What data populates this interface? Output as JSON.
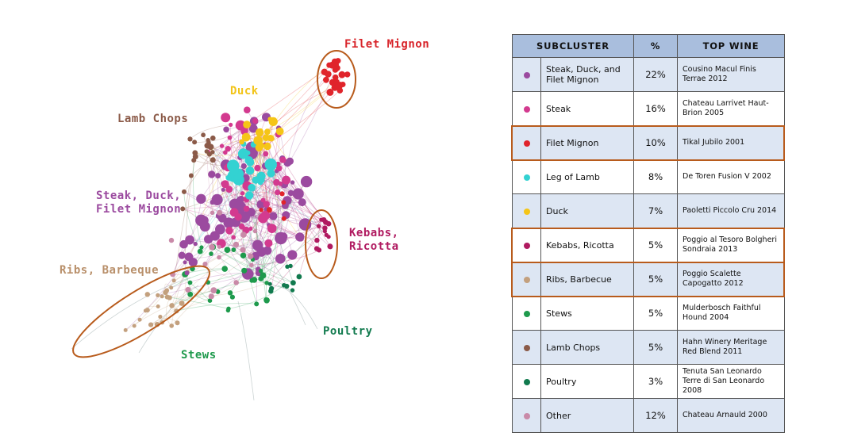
{
  "network": {
    "cluster_labels": [
      {
        "key": "filet",
        "text": "Filet Mignon",
        "color": "#d8242a"
      },
      {
        "key": "duck",
        "text": "Duck",
        "color": "#f2c418"
      },
      {
        "key": "lamb",
        "text": "Lamb Chops",
        "color": "#8b5a48"
      },
      {
        "key": "sdf",
        "text": "Steak, Duck,\nFilet Mignon",
        "color": "#9b4a9f"
      },
      {
        "key": "kebabs",
        "text": "Kebabs,\nRicotta",
        "color": "#b01a60"
      },
      {
        "key": "ribs",
        "text": "Ribs, Barbeque",
        "color": "#b9906b"
      },
      {
        "key": "stews",
        "text": "Stews",
        "color": "#1e9a4c"
      },
      {
        "key": "poultry",
        "text": "Poultry",
        "color": "#117a4e"
      }
    ],
    "node_colors": {
      "sdf": "#9b4a9f",
      "steak": "#d33a8f",
      "filet": "#e0242b",
      "lamb_leg": "#33d2d2",
      "duck": "#f5c517",
      "kebabs": "#b01a60",
      "ribs": "#c3a07e",
      "stews": "#1e9a4c",
      "lamb_chops": "#8b5a48",
      "poultry": "#117a4e",
      "other": "#c98aa8"
    },
    "highlight_color": "#b85b1c"
  },
  "table": {
    "headers": [
      "SUBCLUSTER",
      "%",
      "TOP WINE"
    ],
    "rows": [
      {
        "color": "#9b4a9f",
        "name": "Steak, Duck, and Filet Mignon",
        "pct": "22%",
        "wine": "Cousino Macul Finis Terrae 2012"
      },
      {
        "color": "#d33a8f",
        "name": "Steak",
        "pct": "16%",
        "wine": "Chateau Larrivet Haut-Brion 2005"
      },
      {
        "color": "#e0242b",
        "name": "Filet Mignon",
        "pct": "10%",
        "wine": "Tikal Jubilo 2001"
      },
      {
        "color": "#33d2d2",
        "name": "Leg of Lamb",
        "pct": "8%",
        "wine": "De Toren Fusion V 2002"
      },
      {
        "color": "#f5c517",
        "name": "Duck",
        "pct": "7%",
        "wine": "Paoletti Piccolo Cru 2014"
      },
      {
        "color": "#b01a60",
        "name": "Kebabs, Ricotta",
        "pct": "5%",
        "wine": "Poggio al Tesoro Bolgheri Sondraia 2013"
      },
      {
        "color": "#c3a07e",
        "name": "Ribs, Barbecue",
        "pct": "5%",
        "wine": "Poggio Scalette Capogatto 2012"
      },
      {
        "color": "#1e9a4c",
        "name": "Stews",
        "pct": "5%",
        "wine": "Mulderbosch Faithful Hound 2004"
      },
      {
        "color": "#8b5a48",
        "name": "Lamb Chops",
        "pct": "5%",
        "wine": "Hahn Winery Meritage Red Blend 2011"
      },
      {
        "color": "#117a4e",
        "name": "Poultry",
        "pct": "3%",
        "wine": "Tenuta San Leonardo Terre di San Leonardo 2008"
      },
      {
        "color": "#c98aa8",
        "name": "Other",
        "pct": "12%",
        "wine": "Chateau Arnauld 2000"
      }
    ],
    "highlighted_rows": [
      "Filet Mignon",
      "Kebabs, Ricotta",
      "Ribs, Barbecue"
    ]
  }
}
